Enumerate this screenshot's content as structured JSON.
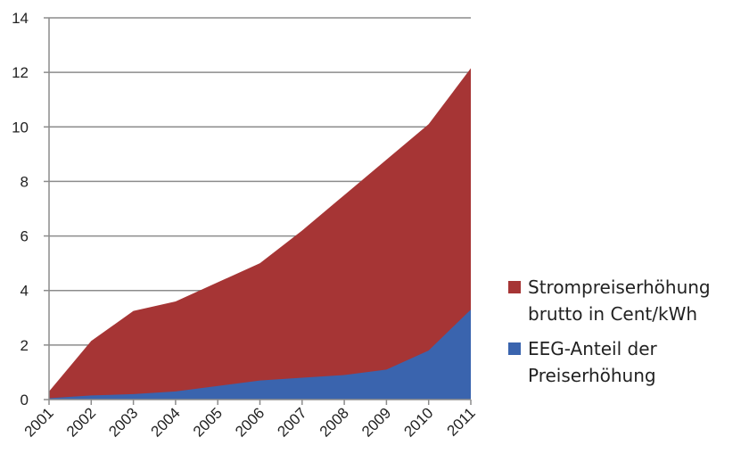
{
  "chart_data": {
    "type": "area",
    "stacked": true,
    "categories": [
      "2001",
      "2002",
      "2003",
      "2004",
      "2005",
      "2006",
      "2007",
      "2008",
      "2009",
      "2010",
      "2011"
    ],
    "series": [
      {
        "name": "EEG-Anteil der Preiserhöhung",
        "color": "#3a64ae",
        "values": [
          0.05,
          0.15,
          0.2,
          0.3,
          0.5,
          0.7,
          0.8,
          0.9,
          1.1,
          1.8,
          3.3
        ]
      },
      {
        "name": "Strompreiserhöhung brutto in Cent/kWh",
        "color": "#a63535",
        "total_values": [
          0.3,
          2.15,
          3.25,
          3.6,
          4.3,
          5.0,
          6.2,
          7.5,
          8.8,
          10.1,
          12.15
        ]
      }
    ],
    "ylim": [
      0,
      14
    ],
    "y_ticks": [
      0,
      2,
      4,
      6,
      8,
      10,
      12,
      14
    ],
    "grid": true,
    "legend_position": "right",
    "legend": [
      {
        "lines": [
          "Strompreiserhöhung",
          "brutto in Cent/kWh"
        ],
        "color": "#a63535"
      },
      {
        "lines": [
          "EEG-Anteil der",
          "Preiserhöhung"
        ],
        "color": "#3a64ae"
      }
    ]
  }
}
